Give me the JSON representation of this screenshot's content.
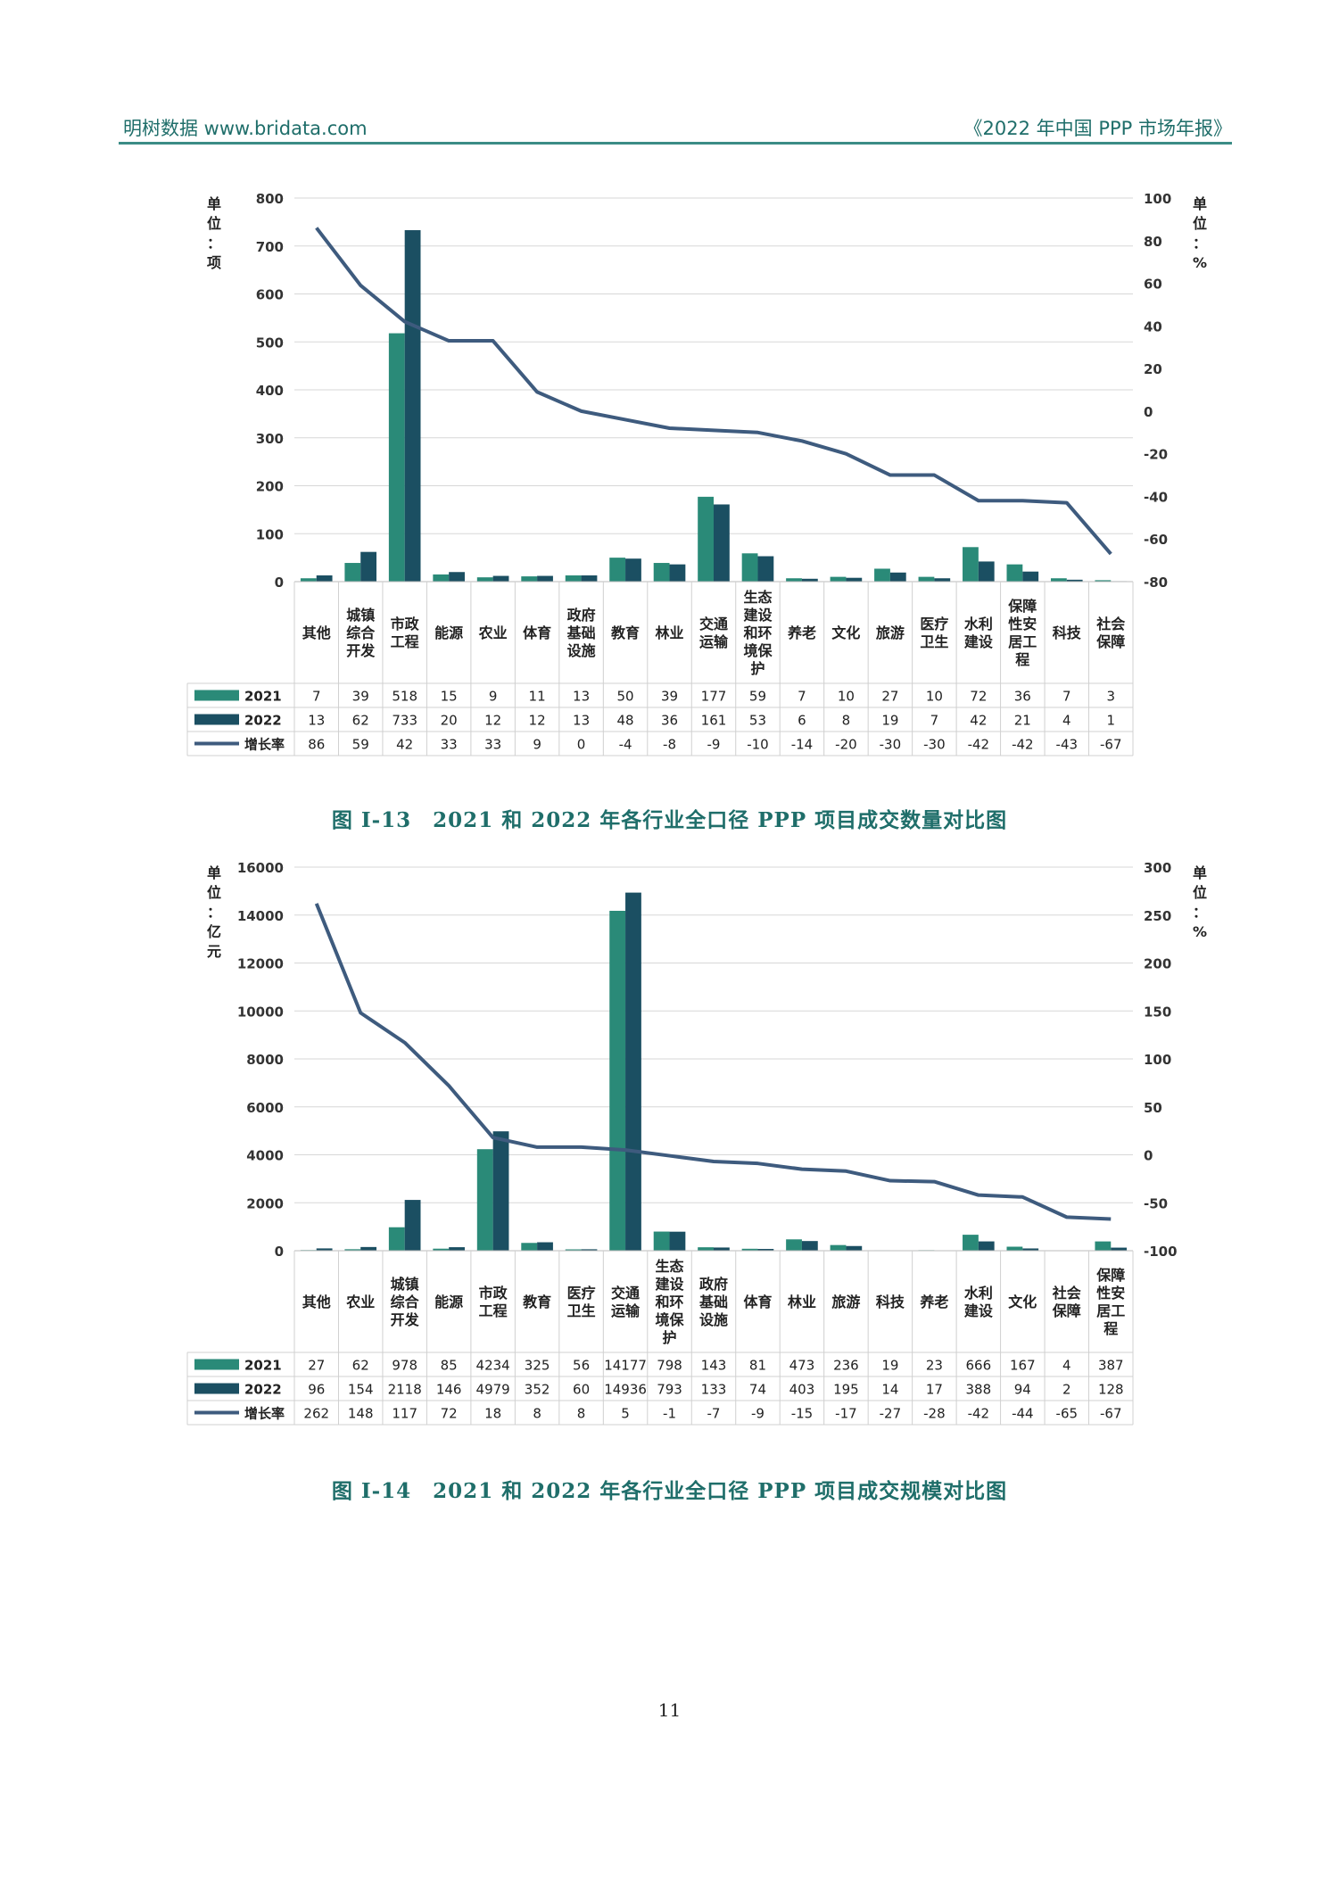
{
  "header": {
    "left": "明树数据 www.bridata.com",
    "right": "《2022 年中国 PPP 市场年报》"
  },
  "page_number": "11",
  "colors": {
    "y2021": "#2a8a78",
    "y2022": "#1b4f62",
    "line": "#3e5b7e",
    "header": "#1f6e6a"
  },
  "chart_data": [
    {
      "type": "bar",
      "caption": "图 I-13　2021 和 2022 年各行业全口径 PPP 项目成交数量对比图",
      "ylabel": "单位：项",
      "y2label": "单位：%",
      "ylim": [
        0,
        800
      ],
      "yticks": [
        "0",
        "100",
        "200",
        "300",
        "400",
        "500",
        "600",
        "700",
        "800"
      ],
      "y2lim": [
        -80,
        100
      ],
      "y2ticks": [
        "-80",
        "-60",
        "-40",
        "-20",
        "0",
        "20",
        "40",
        "60",
        "80",
        "100"
      ],
      "categories": [
        "其他",
        "城镇综合开发",
        "市政工程",
        "能源",
        "农业",
        "体育",
        "政府基础设施",
        "教育",
        "林业",
        "交通运输",
        "生态建设和环境保护",
        "养老",
        "文化",
        "旅游",
        "医疗卫生",
        "水利建设",
        "保障性安居工程",
        "科技",
        "社会保障"
      ],
      "series": [
        {
          "name": "2021",
          "type": "bar",
          "values": [
            7,
            39,
            518,
            15,
            9,
            11,
            13,
            50,
            39,
            177,
            59,
            7,
            10,
            27,
            10,
            72,
            36,
            7,
            3
          ]
        },
        {
          "name": "2022",
          "type": "bar",
          "values": [
            13,
            62,
            733,
            20,
            12,
            12,
            13,
            48,
            36,
            161,
            53,
            6,
            8,
            19,
            7,
            42,
            21,
            4,
            1
          ]
        },
        {
          "name": "增长率",
          "type": "line",
          "axis": "right",
          "values": [
            86,
            59,
            42,
            33,
            33,
            9,
            0,
            -4,
            -8,
            -9,
            -10,
            -14,
            -20,
            -30,
            -30,
            -42,
            -42,
            -43,
            -67
          ]
        }
      ]
    },
    {
      "type": "bar",
      "caption": "图 I-14　2021 和 2022 年各行业全口径 PPP 项目成交规模对比图",
      "ylabel": "单位：亿元",
      "y2label": "单位：%",
      "ylim": [
        0,
        16000
      ],
      "yticks": [
        "0",
        "2000",
        "4000",
        "6000",
        "8000",
        "10000",
        "12000",
        "14000",
        "16000"
      ],
      "y2lim": [
        -100,
        300
      ],
      "y2ticks": [
        "-100",
        "-50",
        "0",
        "50",
        "100",
        "150",
        "200",
        "250",
        "300"
      ],
      "categories": [
        "其他",
        "农业",
        "城镇综合开发",
        "能源",
        "市政工程",
        "教育",
        "医疗卫生",
        "交通运输",
        "生态建设和环境保护",
        "政府基础设施",
        "体育",
        "林业",
        "旅游",
        "科技",
        "养老",
        "水利建设",
        "文化",
        "社会保障",
        "保障性安居工程"
      ],
      "series": [
        {
          "name": "2021",
          "type": "bar",
          "values": [
            27,
            62,
            978,
            85,
            4234,
            325,
            56,
            14177,
            798,
            143,
            81,
            473,
            236,
            19,
            23,
            666,
            167,
            4,
            387
          ]
        },
        {
          "name": "2022",
          "type": "bar",
          "values": [
            96,
            154,
            2118,
            146,
            4979,
            352,
            60,
            14936,
            793,
            133,
            74,
            403,
            195,
            14,
            17,
            388,
            94,
            2,
            128
          ]
        },
        {
          "name": "增长率",
          "type": "line",
          "axis": "right",
          "values": [
            262,
            148,
            117,
            72,
            18,
            8,
            8,
            5,
            -1,
            -7,
            -9,
            -15,
            -17,
            -27,
            -28,
            -42,
            -44,
            -65,
            -67
          ]
        }
      ]
    }
  ]
}
